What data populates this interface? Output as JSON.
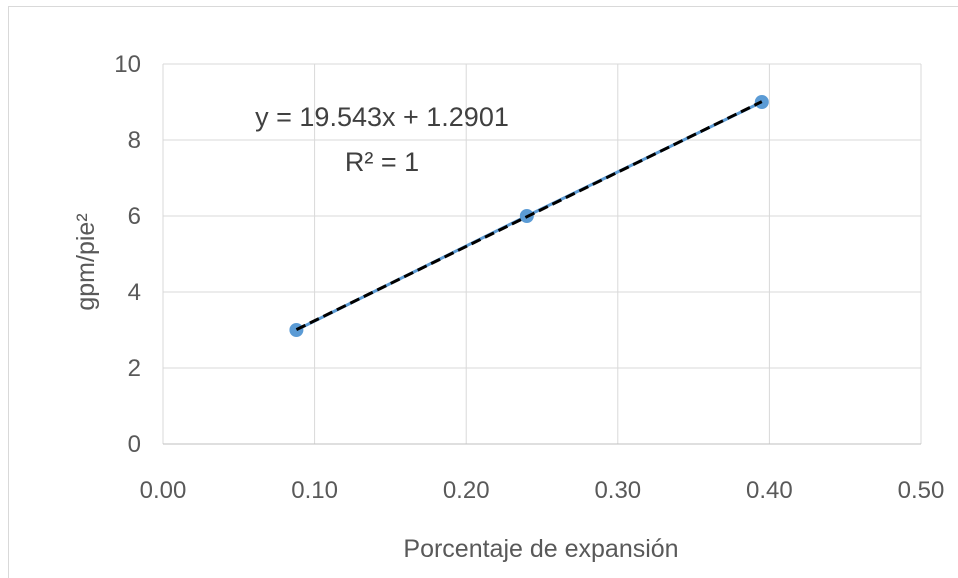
{
  "chart_data": {
    "type": "scatter",
    "title": "",
    "xlabel": "Porcentaje de expansión",
    "ylabel": "gpm/pie²",
    "xlim": [
      0,
      0.5
    ],
    "ylim": [
      0,
      10
    ],
    "x_ticks": [
      "0.00",
      "0.10",
      "0.20",
      "0.30",
      "0.40",
      "0.50"
    ],
    "y_ticks": [
      "0",
      "2",
      "4",
      "6",
      "8",
      "10"
    ],
    "grid": true,
    "legend": "none",
    "series": [
      {
        "x": [
          0.088,
          0.24,
          0.395
        ],
        "y": [
          3,
          6,
          9
        ],
        "color": "#5b9bd5",
        "line": "solid"
      }
    ],
    "trendline": {
      "type": "linear",
      "slope": 19.543,
      "intercept": 1.2901,
      "color": "#000000",
      "style": "dashed",
      "x_range": [
        0.088,
        0.395
      ]
    },
    "annotations": {
      "equation": "y = 19.543x + 1.2901",
      "r_squared": "R² = 1"
    }
  }
}
